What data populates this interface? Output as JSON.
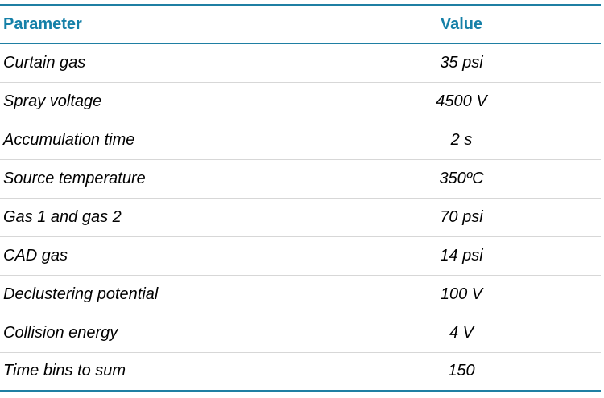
{
  "table": {
    "headers": {
      "parameter": "Parameter",
      "value": "Value"
    },
    "rows": [
      {
        "parameter": "Curtain gas",
        "value": "35 psi"
      },
      {
        "parameter": "Spray voltage",
        "value": "4500 V"
      },
      {
        "parameter": "Accumulation time",
        "value": "2 s"
      },
      {
        "parameter": "Source temperature",
        "value": "350ºC"
      },
      {
        "parameter": "Gas 1 and gas 2",
        "value": "70 psi"
      },
      {
        "parameter": "CAD gas",
        "value": "14 psi"
      },
      {
        "parameter": "Declustering potential",
        "value": "100 V"
      },
      {
        "parameter": "Collision energy",
        "value": "4 V"
      },
      {
        "parameter": "Time bins to sum",
        "value": "150"
      }
    ]
  },
  "colors": {
    "header_text": "#1580a8",
    "rule": "#1f7fa3",
    "row_divider": "#d7d7d7"
  }
}
